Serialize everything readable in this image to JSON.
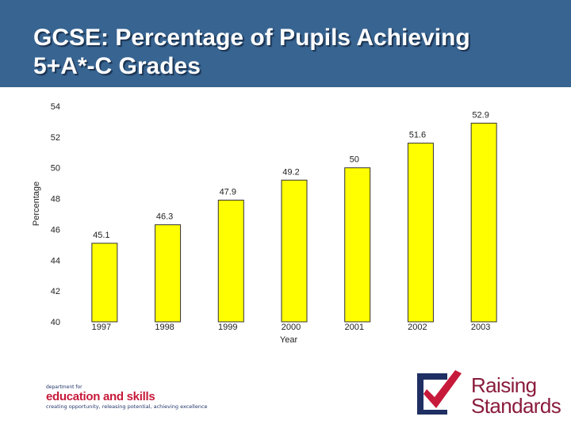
{
  "title": {
    "line1": "GCSE: Percentage of Pupils Achieving",
    "line2": "5+A*-C Grades"
  },
  "chart_data": {
    "type": "bar",
    "categories": [
      "1997",
      "1998",
      "1999",
      "2000",
      "2001",
      "2002",
      "2003"
    ],
    "values": [
      45.1,
      46.3,
      47.9,
      49.2,
      50,
      51.6,
      52.9
    ],
    "data_labels": [
      "45.1",
      "46.3",
      "47.9",
      "49.2",
      "50",
      "51.6",
      "52.9"
    ],
    "xlabel": "Year",
    "ylabel": "Percentage",
    "ylim": [
      40,
      54
    ],
    "yticks": [
      40,
      42,
      44,
      46,
      48,
      50,
      52,
      54
    ],
    "grid": false,
    "legend": "none",
    "colors": {
      "bar_fill": "#ffff00",
      "bar_stroke": "#333333",
      "plot_bg": "#ffffff",
      "axis": "#333333"
    }
  },
  "footer": {
    "dfes": {
      "small": "department for",
      "main": "education and skills",
      "tagline": "creating opportunity, releasing potential, achieving excellence"
    },
    "raising_standards": {
      "line1": "Raising",
      "line2": "Standards"
    }
  },
  "colors": {
    "background": "#386491",
    "title": "#ffffff",
    "dfes_red": "#c7193a",
    "dfes_navy": "#22356a",
    "rs_maroon": "#8a1c3c",
    "rs_navy": "#1f2f63"
  }
}
